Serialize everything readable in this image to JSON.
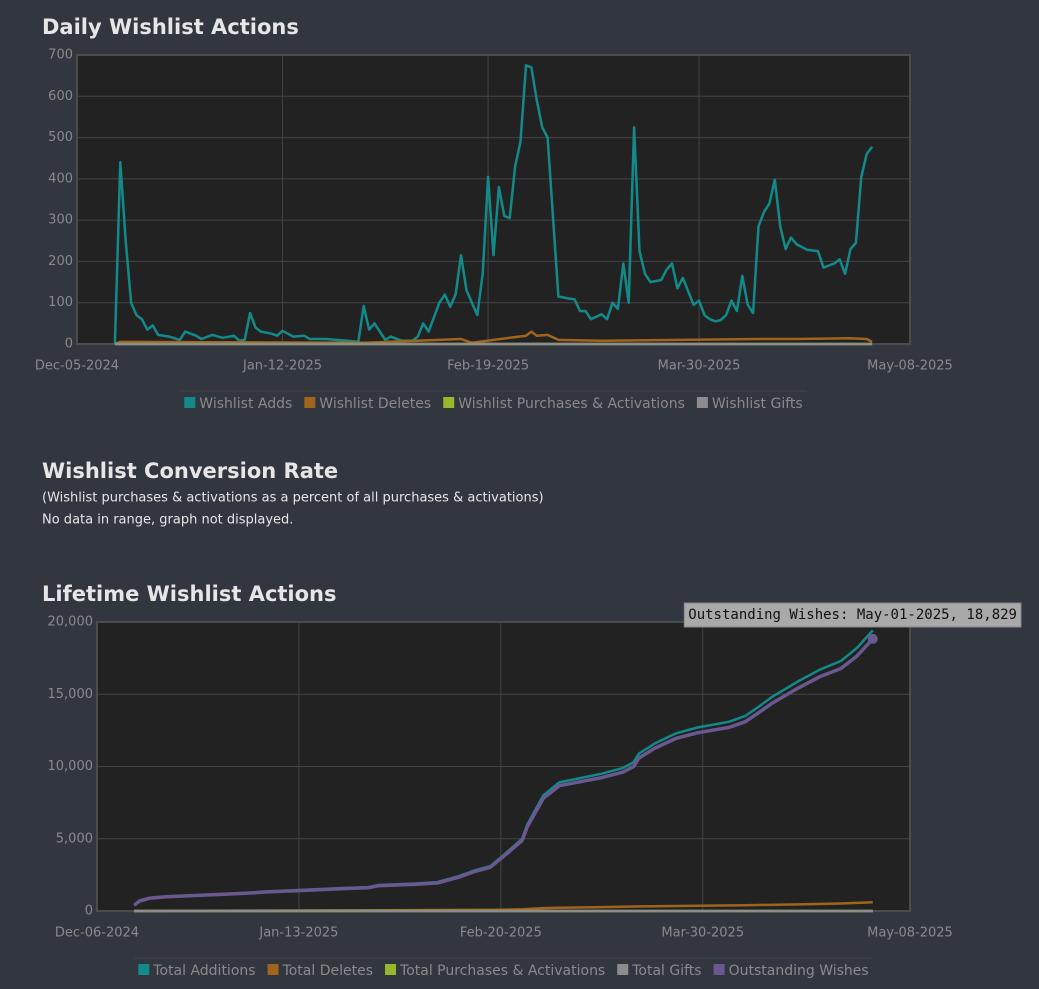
{
  "chart_data": [
    {
      "type": "line",
      "title": "Daily Wishlist Actions",
      "xlim": [
        "2024-12-05",
        "2025-05-08"
      ],
      "xticks": [
        {
          "value": "2024-12-05",
          "label": "Dec-05-2024"
        },
        {
          "value": "2025-01-12",
          "label": "Jan-12-2025"
        },
        {
          "value": "2025-02-19",
          "label": "Feb-19-2025"
        },
        {
          "value": "2025-03-30",
          "label": "Mar-30-2025"
        },
        {
          "value": "2025-05-08",
          "label": "May-08-2025"
        }
      ],
      "ylim": [
        0,
        700
      ],
      "yticks": [
        0,
        100,
        200,
        300,
        400,
        500,
        600,
        700
      ],
      "grid": true,
      "series": [
        {
          "name": "Wishlist Adds",
          "color": "#138a8a",
          "x": [
            "2024-12-12",
            "2024-12-13",
            "2024-12-14",
            "2024-12-15",
            "2024-12-16",
            "2024-12-17",
            "2024-12-18",
            "2024-12-19",
            "2024-12-20",
            "2024-12-22",
            "2024-12-24",
            "2024-12-25",
            "2024-12-27",
            "2024-12-28",
            "2024-12-30",
            "2025-01-01",
            "2025-01-03",
            "2025-01-04",
            "2025-01-05",
            "2025-01-06",
            "2025-01-07",
            "2025-01-08",
            "2025-01-10",
            "2025-01-11",
            "2025-01-12",
            "2025-01-14",
            "2025-01-16",
            "2025-01-17",
            "2025-01-20",
            "2025-01-22",
            "2025-01-24",
            "2025-01-26",
            "2025-01-27",
            "2025-01-28",
            "2025-01-29",
            "2025-01-31",
            "2025-02-01",
            "2025-02-03",
            "2025-02-05",
            "2025-02-06",
            "2025-02-07",
            "2025-02-08",
            "2025-02-10",
            "2025-02-11",
            "2025-02-12",
            "2025-02-13",
            "2025-02-14",
            "2025-02-15",
            "2025-02-17",
            "2025-02-18",
            "2025-02-19",
            "2025-02-20",
            "2025-02-21",
            "2025-02-22",
            "2025-02-23",
            "2025-02-24",
            "2025-02-25",
            "2025-02-26",
            "2025-02-27",
            "2025-02-28",
            "2025-03-01",
            "2025-03-02",
            "2025-03-04",
            "2025-03-06",
            "2025-03-07",
            "2025-03-08",
            "2025-03-09",
            "2025-03-10",
            "2025-03-12",
            "2025-03-13",
            "2025-03-14",
            "2025-03-15",
            "2025-03-16",
            "2025-03-17",
            "2025-03-18",
            "2025-03-19",
            "2025-03-20",
            "2025-03-21",
            "2025-03-23",
            "2025-03-24",
            "2025-03-25",
            "2025-03-26",
            "2025-03-27",
            "2025-03-29",
            "2025-03-30",
            "2025-03-31",
            "2025-04-01",
            "2025-04-02",
            "2025-04-03",
            "2025-04-04",
            "2025-04-05",
            "2025-04-06",
            "2025-04-07",
            "2025-04-08",
            "2025-04-09",
            "2025-04-10",
            "2025-04-11",
            "2025-04-12",
            "2025-04-13",
            "2025-04-14",
            "2025-04-15",
            "2025-04-16",
            "2025-04-17",
            "2025-04-19",
            "2025-04-21",
            "2025-04-22",
            "2025-04-24",
            "2025-04-25",
            "2025-04-26",
            "2025-04-27",
            "2025-04-28",
            "2025-04-29",
            "2025-04-30",
            "2025-05-01"
          ],
          "values": [
            0,
            440,
            250,
            100,
            70,
            60,
            35,
            45,
            22,
            18,
            10,
            30,
            20,
            12,
            22,
            15,
            20,
            8,
            10,
            75,
            40,
            30,
            25,
            20,
            32,
            18,
            20,
            12,
            12,
            10,
            8,
            5,
            92,
            35,
            50,
            10,
            18,
            8,
            8,
            18,
            50,
            30,
            100,
            120,
            90,
            120,
            215,
            130,
            70,
            170,
            405,
            215,
            380,
            310,
            305,
            430,
            490,
            675,
            670,
            590,
            525,
            500,
            115,
            110,
            108,
            80,
            80,
            60,
            72,
            60,
            100,
            85,
            195,
            100,
            525,
            225,
            170,
            150,
            155,
            180,
            195,
            135,
            160,
            95,
            105,
            70,
            60,
            55,
            58,
            70,
            105,
            80,
            165,
            95,
            75,
            285,
            320,
            340,
            398,
            285,
            230,
            258,
            242,
            228,
            225,
            185,
            195,
            205,
            170,
            230,
            245,
            405,
            460,
            478
          ]
        },
        {
          "name": "Wishlist Deletes",
          "color": "#a0651c",
          "x": [
            "2024-12-12",
            "2024-12-13",
            "2025-01-27",
            "2025-02-14",
            "2025-02-16",
            "2025-02-23",
            "2025-02-26",
            "2025-02-27",
            "2025-02-28",
            "2025-03-02",
            "2025-03-04",
            "2025-03-12",
            "2025-04-10",
            "2025-04-17",
            "2025-04-27",
            "2025-04-30",
            "2025-05-01"
          ],
          "values": [
            0,
            5,
            3,
            12,
            3,
            15,
            20,
            30,
            20,
            22,
            10,
            8,
            12,
            12,
            14,
            12,
            5
          ]
        },
        {
          "name": "Wishlist Purchases & Activations",
          "color": "#97b82a",
          "x": [
            "2024-12-12",
            "2025-05-01"
          ],
          "values": [
            0,
            0
          ]
        },
        {
          "name": "Wishlist Gifts",
          "color": "#8c8c8c",
          "x": [
            "2024-12-12",
            "2025-05-01"
          ],
          "values": [
            0,
            0
          ]
        }
      ]
    },
    {
      "type": "line",
      "title": "Lifetime Wishlist Actions",
      "xlim": [
        "2024-12-06",
        "2025-05-08"
      ],
      "xticks": [
        {
          "value": "2024-12-06",
          "label": "Dec-06-2024"
        },
        {
          "value": "2025-01-13",
          "label": "Jan-13-2025"
        },
        {
          "value": "2025-02-20",
          "label": "Feb-20-2025"
        },
        {
          "value": "2025-03-30",
          "label": "Mar-30-2025"
        },
        {
          "value": "2025-05-08",
          "label": "May-08-2025"
        }
      ],
      "ylim": [
        0,
        20000
      ],
      "yticks": [
        0,
        {
          "value": 5000,
          "label": "5,000"
        },
        {
          "value": 10000,
          "label": "10,000"
        },
        {
          "value": 15000,
          "label": "15,000"
        },
        {
          "value": 20000,
          "label": "20,000"
        }
      ],
      "grid": true,
      "tooltip": "Outstanding Wishes: May-01-2025, 18,829",
      "series": [
        {
          "name": "Total Additions",
          "color": "#138a8a",
          "x": [
            "2024-12-13",
            "2024-12-14",
            "2024-12-16",
            "2024-12-19",
            "2024-12-25",
            "2025-01-03",
            "2025-01-07",
            "2025-01-13",
            "2025-01-22",
            "2025-01-26",
            "2025-01-28",
            "2025-02-04",
            "2025-02-08",
            "2025-02-12",
            "2025-02-15",
            "2025-02-18",
            "2025-02-20",
            "2025-02-24",
            "2025-02-25",
            "2025-02-28",
            "2025-03-03",
            "2025-03-11",
            "2025-03-15",
            "2025-03-17",
            "2025-03-18",
            "2025-03-21",
            "2025-03-25",
            "2025-03-29",
            "2025-04-04",
            "2025-04-07",
            "2025-04-09",
            "2025-04-12",
            "2025-04-17",
            "2025-04-21",
            "2025-04-25",
            "2025-04-28",
            "2025-05-01"
          ],
          "values": [
            400,
            700,
            900,
            1000,
            1100,
            1250,
            1350,
            1450,
            1600,
            1650,
            1800,
            1900,
            2000,
            2400,
            2800,
            3100,
            3700,
            5000,
            6000,
            8000,
            8900,
            9500,
            9900,
            10300,
            10900,
            11600,
            12300,
            12700,
            13100,
            13500,
            14000,
            14800,
            15900,
            16700,
            17300,
            18200,
            19429
          ]
        },
        {
          "name": "Total Deletes",
          "color": "#a0651c",
          "x": [
            "2024-12-13",
            "2025-02-20",
            "2025-02-24",
            "2025-02-28",
            "2025-03-03",
            "2025-03-11",
            "2025-03-21",
            "2025-03-29",
            "2025-04-07",
            "2025-04-17",
            "2025-04-25",
            "2025-05-01"
          ],
          "values": [
            0,
            80,
            120,
            200,
            230,
            270,
            330,
            370,
            400,
            460,
            520,
            600
          ]
        },
        {
          "name": "Total Purchases & Activations",
          "color": "#97b82a",
          "x": [
            "2024-12-13",
            "2025-05-01"
          ],
          "values": [
            0,
            0
          ]
        },
        {
          "name": "Total Gifts",
          "color": "#8c8c8c",
          "x": [
            "2024-12-13",
            "2025-05-01"
          ],
          "values": [
            0,
            0
          ]
        },
        {
          "name": "Outstanding Wishes",
          "color": "#6a5890",
          "x": [
            "2024-12-13",
            "2024-12-14",
            "2024-12-16",
            "2024-12-19",
            "2024-12-25",
            "2025-01-03",
            "2025-01-07",
            "2025-01-13",
            "2025-01-22",
            "2025-01-26",
            "2025-01-28",
            "2025-02-04",
            "2025-02-08",
            "2025-02-12",
            "2025-02-15",
            "2025-02-18",
            "2025-02-20",
            "2025-02-24",
            "2025-02-25",
            "2025-02-28",
            "2025-03-03",
            "2025-03-11",
            "2025-03-15",
            "2025-03-17",
            "2025-03-18",
            "2025-03-21",
            "2025-03-25",
            "2025-03-29",
            "2025-04-04",
            "2025-04-07",
            "2025-04-09",
            "2025-04-12",
            "2025-04-17",
            "2025-04-21",
            "2025-04-25",
            "2025-04-28",
            "2025-05-01"
          ],
          "values": [
            400,
            695,
            890,
            985,
            1080,
            1225,
            1320,
            1415,
            1560,
            1605,
            1750,
            1845,
            1940,
            2335,
            2730,
            3025,
            3620,
            4880,
            5850,
            7800,
            8670,
            9230,
            9610,
            10000,
            10590,
            11270,
            11950,
            12330,
            12710,
            13100,
            13590,
            14370,
            15440,
            16210,
            16780,
            17640,
            18829
          ]
        }
      ]
    }
  ],
  "conversion_section": {
    "title": "Wishlist Conversion Rate",
    "subtitle": "(Wishlist purchases & activations as a percent of all purchases & activations)",
    "message": "No data in range, graph not displayed."
  }
}
